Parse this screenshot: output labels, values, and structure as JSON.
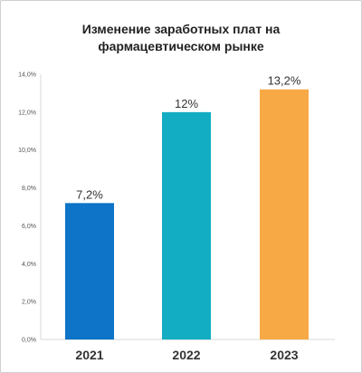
{
  "chart_data": {
    "type": "bar",
    "title_lines": [
      "Изменение заработных плат на",
      "фармацевтическом рынке"
    ],
    "categories": [
      "2021",
      "2022",
      "2023"
    ],
    "values": [
      7.2,
      12,
      13.2
    ],
    "value_labels": [
      "7,2%",
      "12%",
      "13,2%"
    ],
    "colors": [
      "#0d74c8",
      "#12adc3",
      "#f7a945"
    ],
    "ylim": [
      0,
      14
    ],
    "yticks": [
      "0,0%",
      "2,0%",
      "4,0%",
      "6,0%",
      "8,0%",
      "10,0%",
      "12,0%",
      "14,0%"
    ],
    "ytick_values": [
      0,
      2,
      4,
      6,
      8,
      10,
      12,
      14
    ],
    "grid": false,
    "legend": "none"
  }
}
